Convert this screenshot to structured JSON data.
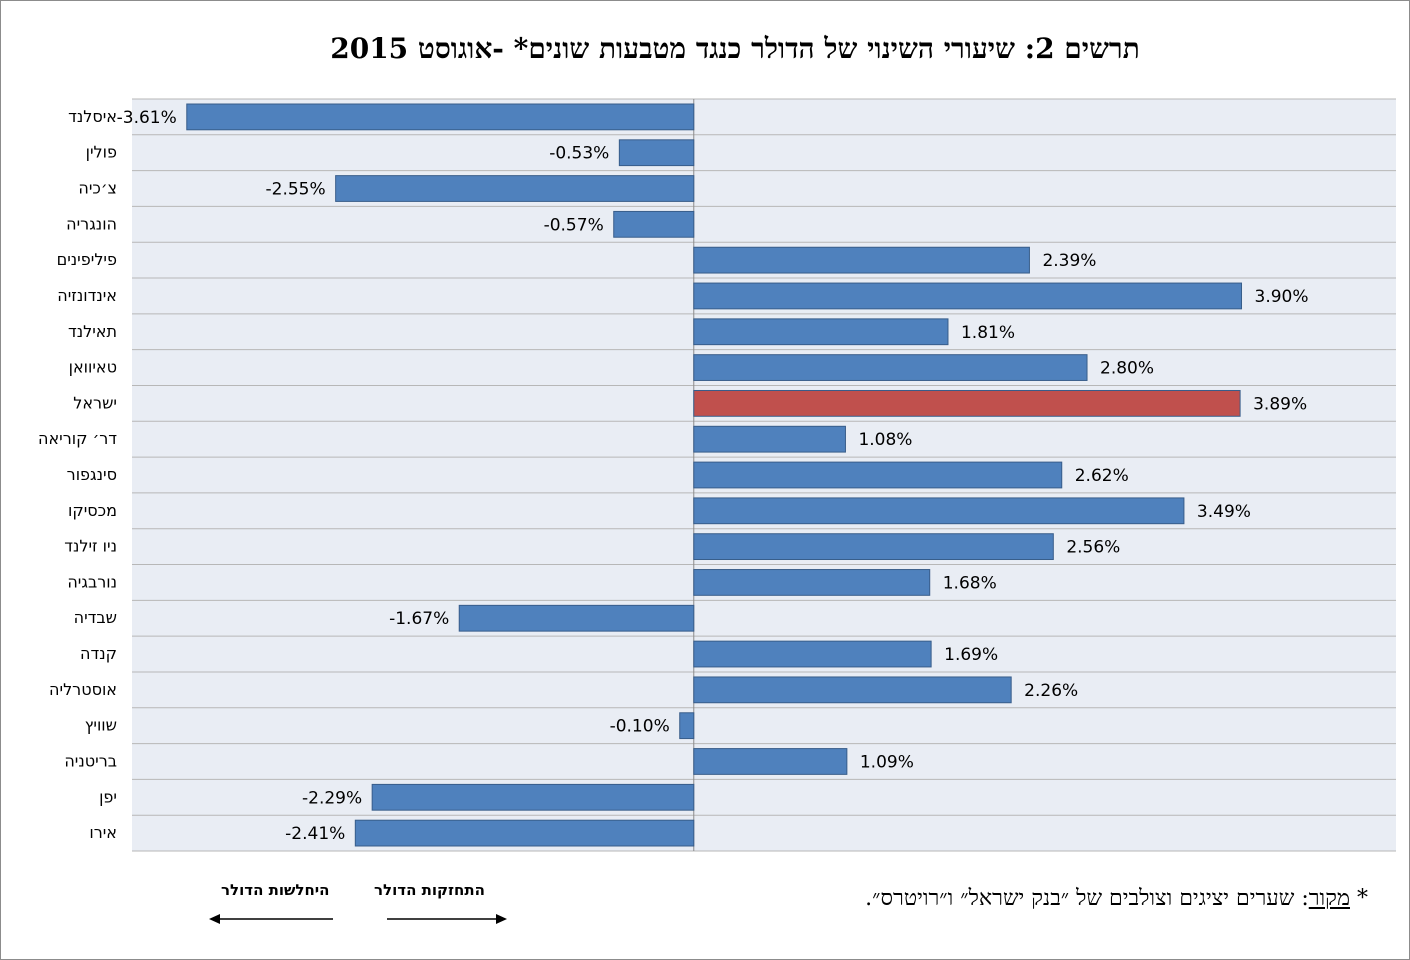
{
  "chart_data": {
    "type": "bar",
    "orientation": "horizontal",
    "title": "תרשים 2: שיעורי השינוי של הדולר כנגד מטבעות שונים* -אוגוסט 2015",
    "categories": [
      "איסלנד",
      "פולין",
      "צ׳כיה",
      "הונגריה",
      "פיליפינים",
      "אינדונזיה",
      "תאילנד",
      "טאיוואן",
      "ישראל",
      "דר׳ קוריאה",
      "סינגפור",
      "מכסיקו",
      "ניו זילנד",
      "נורבגיה",
      "שבדיה",
      "קנדה",
      "אוסטרליה",
      "שוויץ",
      "בריטניה",
      "יפן",
      "אירו"
    ],
    "values": [
      -3.61,
      -0.53,
      -2.55,
      -0.57,
      2.39,
      3.9,
      1.81,
      2.8,
      3.89,
      1.08,
      2.62,
      3.49,
      2.56,
      1.68,
      -1.67,
      1.69,
      2.26,
      -0.1,
      1.09,
      -2.29,
      -2.41
    ],
    "value_labels": [
      "-3.61%",
      "-0.53%",
      "-2.55%",
      "-0.57%",
      "2.39%",
      "3.90%",
      "1.81%",
      "2.80%",
      "3.89%",
      "1.08%",
      "2.62%",
      "3.49%",
      "2.56%",
      "1.68%",
      "-1.67%",
      "1.69%",
      "2.26%",
      "-0.10%",
      "1.09%",
      "-2.29%",
      "-2.41%"
    ],
    "unit": "%",
    "xlim": [
      -4.0,
      5.0
    ],
    "highlight_category": "ישראל",
    "colors": {
      "default": "#4f81bd",
      "highlight": "#c0504d",
      "plot_background": "#e9edf4",
      "gridline": "#b7b7b7"
    }
  },
  "legend": {
    "strengthen_label": "התחזקות הדולר",
    "weaken_label": "היחלשות הדולר"
  },
  "footnote": {
    "star": "*",
    "source_word": "מקור",
    "text": ": שערים יציגים וצולבים של ״בנק ישראל״ ו״רויטרס״."
  }
}
